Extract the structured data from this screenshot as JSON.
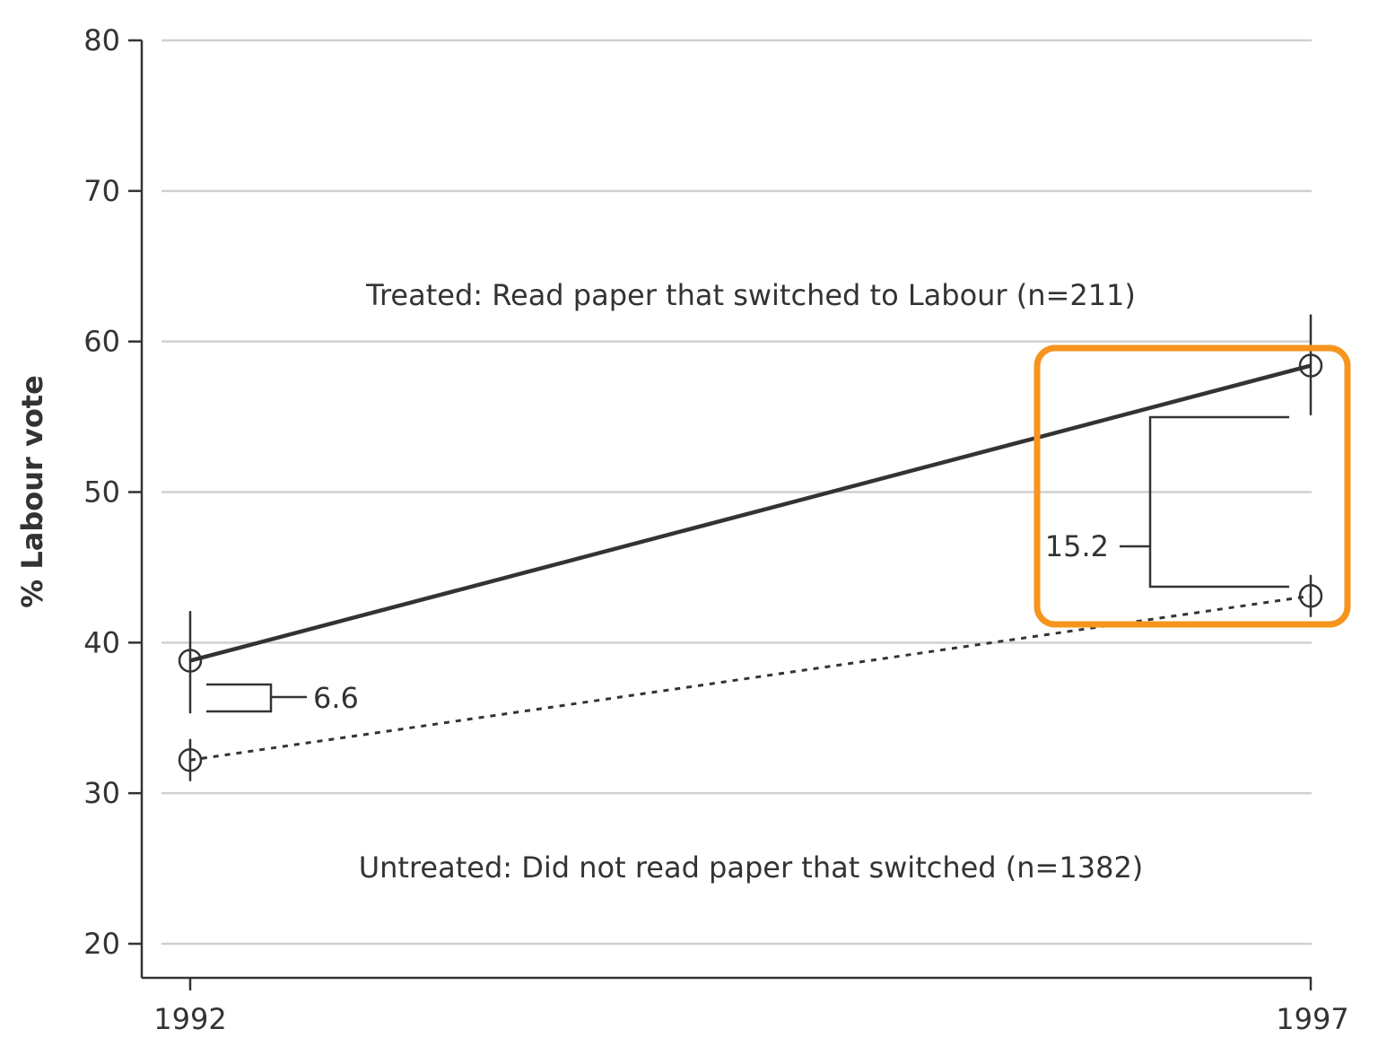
{
  "chart_data": {
    "type": "line",
    "x": [
      "1992",
      "1997"
    ],
    "ylabel": "% Labour vote",
    "ylim": [
      20,
      80
    ],
    "yticks": [
      "20",
      "30",
      "40",
      "50",
      "60",
      "70",
      "80"
    ],
    "xticks": [
      "1992",
      "1997"
    ],
    "grid": true,
    "series": [
      {
        "key": "treated",
        "values": [
          38.8,
          58.4
        ],
        "ci": [
          [
            35.3,
            42.1
          ],
          [
            55.1,
            61.8
          ]
        ],
        "style": "solid",
        "color": "#333333"
      },
      {
        "key": "untreated",
        "values": [
          32.2,
          43.1
        ],
        "ci": [
          [
            30.8,
            33.6
          ],
          [
            41.7,
            44.5
          ]
        ],
        "style": "dotted",
        "color": "#333333"
      }
    ],
    "annotations": {
      "treated_text": "Treated: Read paper that switched to Labour (n=211)",
      "untreated_text": "Untreated: Did not read paper that switched (n=1382)",
      "diff_1992": "6.6",
      "diff_1997": "15.2"
    },
    "highlight": {
      "color": "#F7941D",
      "target": "1997 difference"
    }
  }
}
